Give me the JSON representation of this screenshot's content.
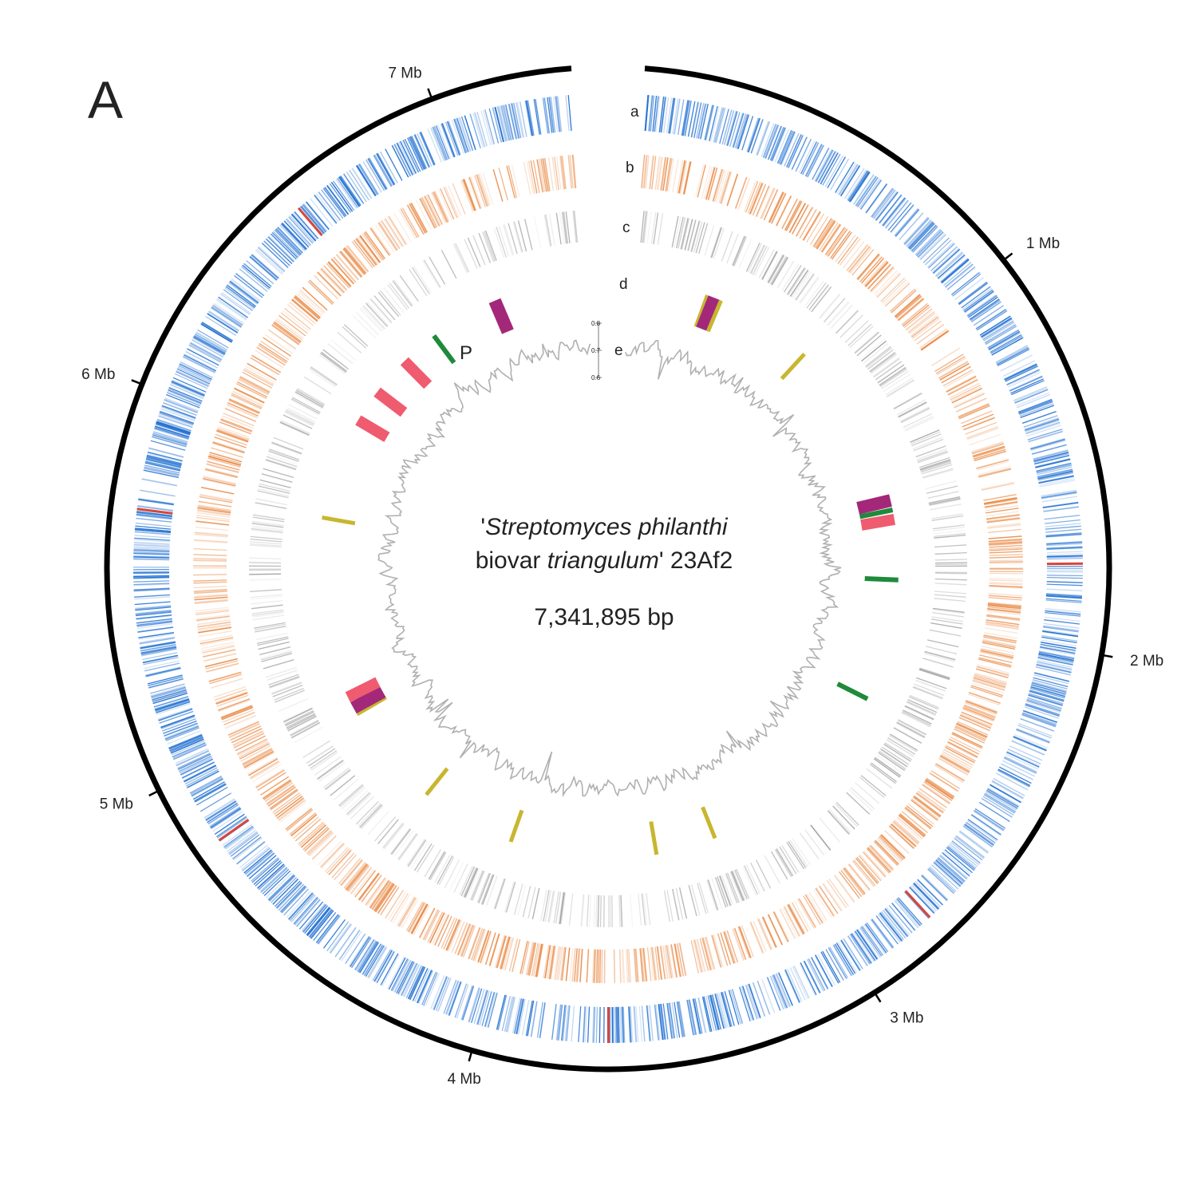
{
  "panel_label": "A",
  "organism": {
    "quote_open": "'",
    "genus_species": "Streptomyces philanthi",
    "biovar_word": "biovar ",
    "biovar_name": "triangulum",
    "quote_close": "'",
    "strain": " 23Af2"
  },
  "genome_length_label": "7,341,895 bp",
  "genome_length_bp": 7341895,
  "scale_ticks": [
    {
      "label": "1 Mb",
      "mb": 1
    },
    {
      "label": "2 Mb",
      "mb": 2
    },
    {
      "label": "3 Mb",
      "mb": 3
    },
    {
      "label": "4 Mb",
      "mb": 4
    },
    {
      "label": "5 Mb",
      "mb": 5
    },
    {
      "label": "6 Mb",
      "mb": 6
    },
    {
      "label": "7 Mb",
      "mb": 7
    }
  ],
  "track_labels": [
    "a",
    "b",
    "c",
    "d",
    "e"
  ],
  "gc_axis_ticks": [
    "0.8",
    "0.7",
    "0.6"
  ],
  "cluster_annotation": "P",
  "colors": {
    "track_a": "#1f6fd1",
    "track_a_highlight": "#d8453a",
    "track_b": "#e8843c",
    "track_c": "#7a7a7a",
    "cluster_purple": "#a3287a",
    "cluster_pink": "#ef5b6f",
    "cluster_green": "#1f8a3a",
    "cluster_olive": "#c8b630",
    "gc_line": "#b0b0b0",
    "backbone": "#000000"
  },
  "tracks": [
    {
      "id": "a",
      "color_key": "track_a"
    },
    {
      "id": "b",
      "color_key": "track_b"
    },
    {
      "id": "c",
      "color_key": "track_c"
    }
  ],
  "track_a_highlights_mb": [
    1.78,
    2.78,
    3.67,
    4.82,
    5.7,
    6.58
  ],
  "clusters": [
    {
      "mb": 0.33,
      "type": "cluster_olive"
    },
    {
      "mb": 0.36,
      "type": "cluster_purple"
    },
    {
      "mb": 0.39,
      "type": "cluster_olive"
    },
    {
      "mb": 0.8,
      "type": "cluster_olive"
    },
    {
      "mb": 1.51,
      "type": "cluster_purple"
    },
    {
      "mb": 1.55,
      "type": "cluster_green"
    },
    {
      "mb": 1.59,
      "type": "cluster_pink"
    },
    {
      "mb": 1.84,
      "type": "cluster_green"
    },
    {
      "mb": 2.35,
      "type": "cluster_green"
    },
    {
      "mb": 3.22,
      "type": "cluster_olive"
    },
    {
      "mb": 3.47,
      "type": "cluster_olive"
    },
    {
      "mb": 4.08,
      "type": "cluster_olive"
    },
    {
      "mb": 4.48,
      "type": "cluster_olive"
    },
    {
      "mb": 4.92,
      "type": "cluster_olive"
    },
    {
      "mb": 4.95,
      "type": "cluster_purple"
    },
    {
      "mb": 5.0,
      "type": "cluster_pink"
    },
    {
      "mb": 5.76,
      "type": "cluster_olive"
    },
    {
      "mb": 6.19,
      "type": "cluster_pink"
    },
    {
      "mb": 6.33,
      "type": "cluster_pink"
    },
    {
      "mb": 6.5,
      "type": "cluster_pink"
    },
    {
      "mb": 6.66,
      "type": "cluster_green"
    },
    {
      "mb": 6.95,
      "type": "cluster_purple"
    }
  ]
}
